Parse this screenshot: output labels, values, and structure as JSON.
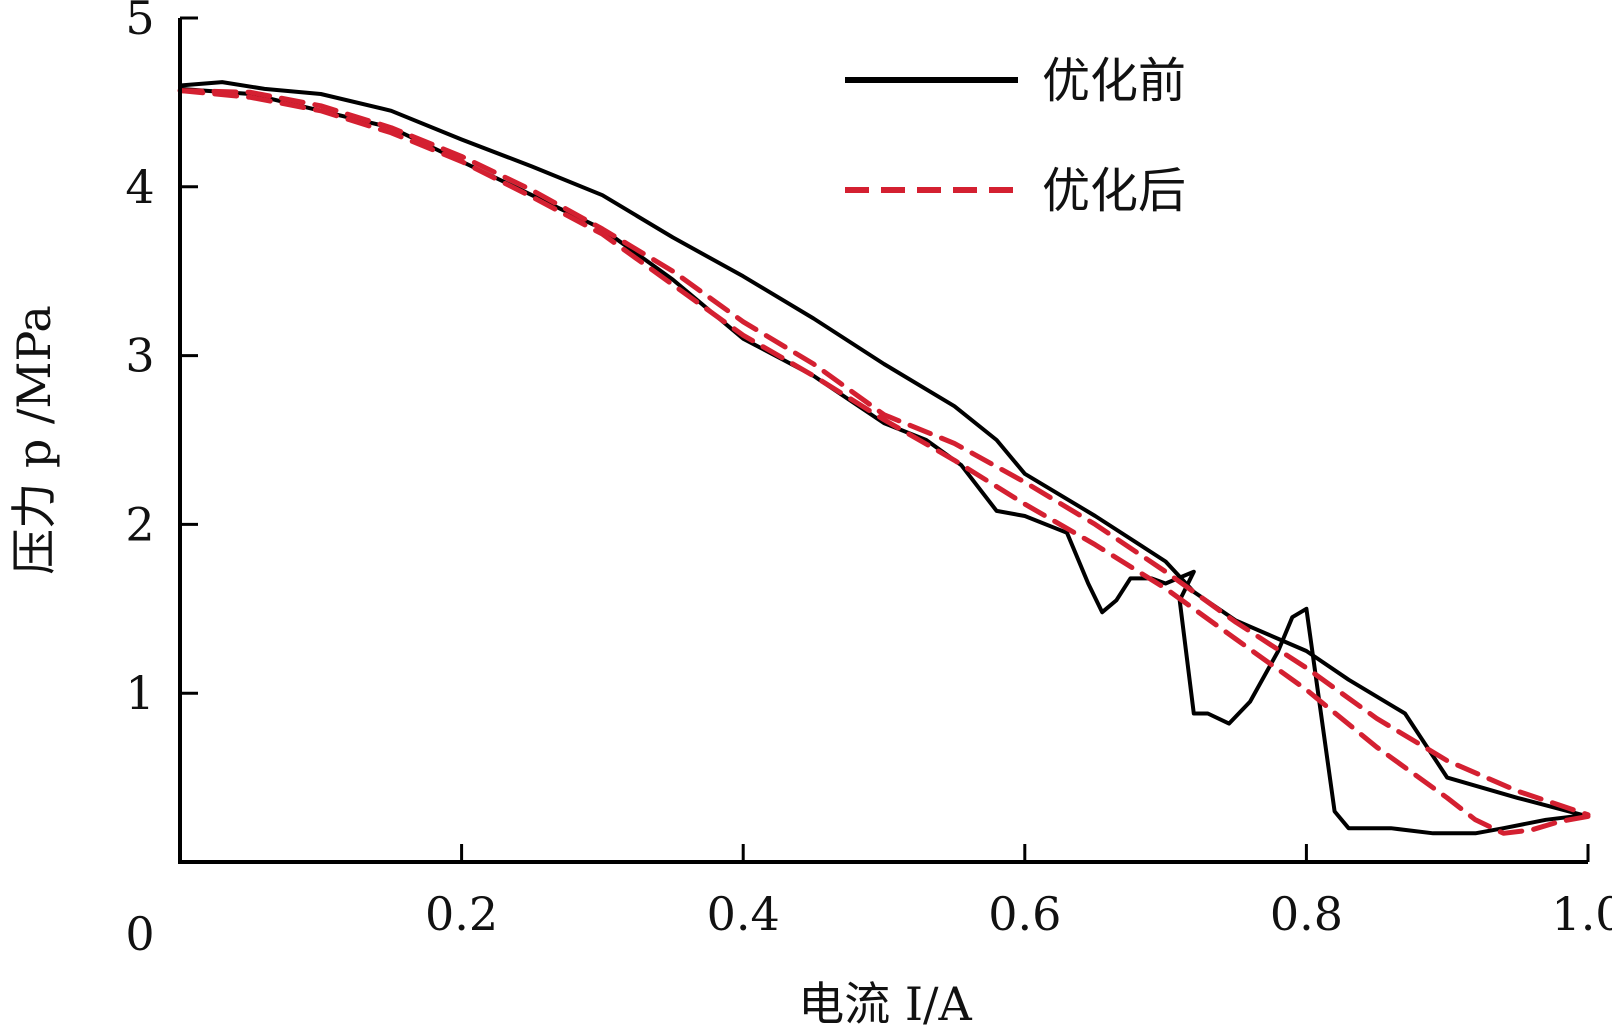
{
  "chart_data": {
    "type": "line",
    "title": "",
    "xlabel": "电流 I/A",
    "ylabel": "压力 p /MPa",
    "xlim": [
      0,
      1.0
    ],
    "ylim": [
      0,
      5
    ],
    "x_ticks": [
      0.2,
      0.4,
      0.6,
      0.8,
      1.0
    ],
    "x_tick_labels": [
      "0.2",
      "0.4",
      "0.6",
      "0.8",
      "1.0"
    ],
    "y_ticks": [
      1,
      2,
      3,
      4,
      5
    ],
    "y_tick_labels": [
      "1",
      "2",
      "3",
      "4",
      "5"
    ],
    "origin_label": "0",
    "grid": false,
    "legend_position": "top-right",
    "series": [
      {
        "name": "优化前",
        "color": "#000000",
        "style": "solid",
        "branches": [
          {
            "x": [
              0,
              0.03,
              0.06,
              0.1,
              0.15,
              0.2,
              0.25,
              0.3,
              0.35,
              0.4,
              0.45,
              0.5,
              0.55,
              0.58,
              0.6,
              0.65,
              0.7,
              0.72,
              0.75,
              0.8,
              0.83,
              0.87,
              0.9,
              0.95,
              1.0
            ],
            "y": [
              4.6,
              4.62,
              4.58,
              4.55,
              4.45,
              4.28,
              4.12,
              3.95,
              3.7,
              3.47,
              3.22,
              2.95,
              2.7,
              2.5,
              2.3,
              2.05,
              1.78,
              1.6,
              1.43,
              1.25,
              1.08,
              0.88,
              0.5,
              0.38,
              0.27
            ]
          },
          {
            "x": [
              1.0,
              0.97,
              0.94,
              0.92,
              0.89,
              0.86,
              0.83,
              0.82,
              0.81,
              0.8,
              0.79,
              0.78,
              0.76,
              0.745,
              0.73,
              0.72,
              0.71,
              0.72,
              0.7,
              0.69,
              0.675,
              0.665,
              0.655,
              0.645,
              0.63,
              0.6,
              0.58,
              0.555,
              0.53,
              0.5,
              0.45,
              0.4,
              0.35,
              0.3,
              0.25,
              0.2,
              0.15,
              0.1,
              0.05,
              0
            ],
            "y": [
              0.28,
              0.25,
              0.2,
              0.17,
              0.17,
              0.2,
              0.2,
              0.3,
              0.9,
              1.5,
              1.45,
              1.25,
              0.95,
              0.82,
              0.88,
              0.88,
              1.55,
              1.72,
              1.65,
              1.68,
              1.68,
              1.55,
              1.48,
              1.65,
              1.95,
              2.05,
              2.08,
              2.35,
              2.5,
              2.6,
              2.88,
              3.1,
              3.45,
              3.75,
              3.95,
              4.15,
              4.35,
              4.45,
              4.55,
              4.58
            ]
          }
        ]
      },
      {
        "name": "优化后",
        "color": "#d42031",
        "style": "dashed",
        "branches": [
          {
            "x": [
              0,
              0.05,
              0.1,
              0.15,
              0.2,
              0.25,
              0.3,
              0.35,
              0.4,
              0.45,
              0.5,
              0.55,
              0.6,
              0.65,
              0.7,
              0.75,
              0.8,
              0.85,
              0.9,
              0.95,
              1.0
            ],
            "y": [
              4.57,
              4.56,
              4.48,
              4.35,
              4.18,
              3.98,
              3.75,
              3.5,
              3.2,
              2.95,
              2.65,
              2.48,
              2.25,
              2.0,
              1.72,
              1.42,
              1.15,
              0.85,
              0.6,
              0.42,
              0.28
            ]
          },
          {
            "x": [
              1.0,
              0.98,
              0.96,
              0.94,
              0.92,
              0.9,
              0.85,
              0.8,
              0.75,
              0.7,
              0.65,
              0.6,
              0.55,
              0.5,
              0.45,
              0.4,
              0.35,
              0.3,
              0.25,
              0.2,
              0.15,
              0.1,
              0.05,
              0
            ],
            "y": [
              0.27,
              0.24,
              0.19,
              0.17,
              0.25,
              0.38,
              0.68,
              1.02,
              1.32,
              1.62,
              1.88,
              2.12,
              2.38,
              2.62,
              2.88,
              3.12,
              3.42,
              3.72,
              3.94,
              4.15,
              4.32,
              4.45,
              4.53,
              4.57
            ]
          }
        ]
      }
    ]
  }
}
